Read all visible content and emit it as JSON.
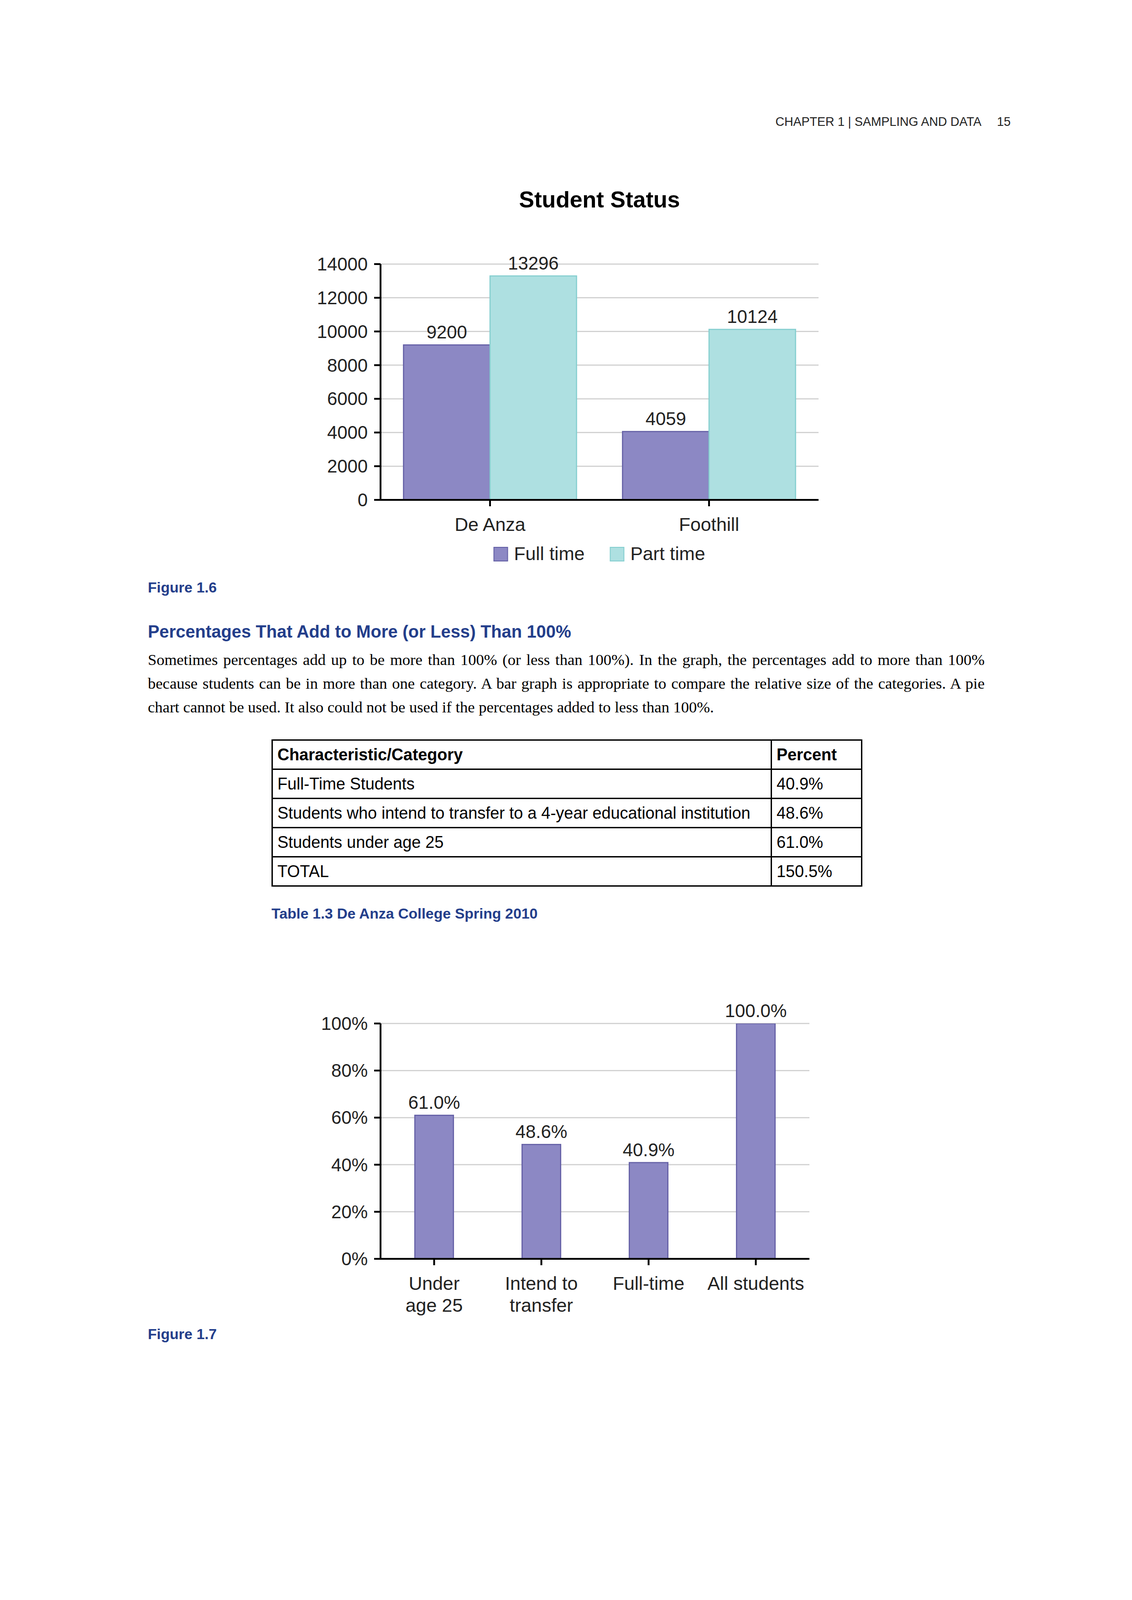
{
  "header": {
    "title": "CHAPTER 1 | SAMPLING AND DATA",
    "page": 15
  },
  "chart_data": [
    {
      "type": "bar",
      "title": "Student Status",
      "categories": [
        "De Anza",
        "Foothill"
      ],
      "series": [
        {
          "name": "Full time",
          "color": "#8c88c4",
          "values": [
            9200,
            4059
          ]
        },
        {
          "name": "Part time",
          "color": "#aee0e1",
          "values": [
            13296,
            10124
          ]
        }
      ],
      "ylim": [
        0,
        14000
      ],
      "yticks": [
        0,
        2000,
        4000,
        6000,
        8000,
        10000,
        12000,
        14000
      ],
      "grid": true,
      "legend": "bottom",
      "data_labels": true
    },
    {
      "type": "bar",
      "categories": [
        "Under\nage 25",
        "Intend to\ntransfer",
        "Full-time",
        "All students"
      ],
      "values": [
        61.0,
        48.6,
        40.9,
        100.0
      ],
      "value_labels": [
        "61.0%",
        "48.6%",
        "40.9%",
        "100.0%"
      ],
      "color": "#8c88c4",
      "ylim": [
        0,
        100
      ],
      "yticks": [
        {
          "value": 0,
          "label": "0%"
        },
        {
          "value": 20,
          "label": "20%"
        },
        {
          "value": 40,
          "label": "40%"
        },
        {
          "value": 60,
          "label": "60%"
        },
        {
          "value": 80,
          "label": "80%"
        },
        {
          "value": 100,
          "label": "100%"
        }
      ],
      "grid": true,
      "data_labels": true
    }
  ],
  "figure_captions": [
    "Figure 1.6",
    "Figure 1.7"
  ],
  "section": {
    "heading": "Percentages That Add to More (or Less) Than 100%",
    "paragraph": "Sometimes percentages add up to be more than 100% (or less than 100%). In the graph, the percentages add to more than 100% because students can be in more than one category. A bar graph is appropriate to compare the relative size of the categories. A pie chart cannot be used. It also could not be used if the percentages added to less than 100%."
  },
  "table": {
    "columns": [
      "Characteristic/Category",
      "Percent"
    ],
    "rows": [
      [
        "Full-Time Students",
        "40.9%"
      ],
      [
        "Students who intend to transfer to a 4-year educational institution",
        "48.6%"
      ],
      [
        "Students under age 25",
        "61.0%"
      ],
      [
        "TOTAL",
        "150.5%"
      ]
    ],
    "caption": "Table 1.3 De Anza College Spring 2010"
  }
}
